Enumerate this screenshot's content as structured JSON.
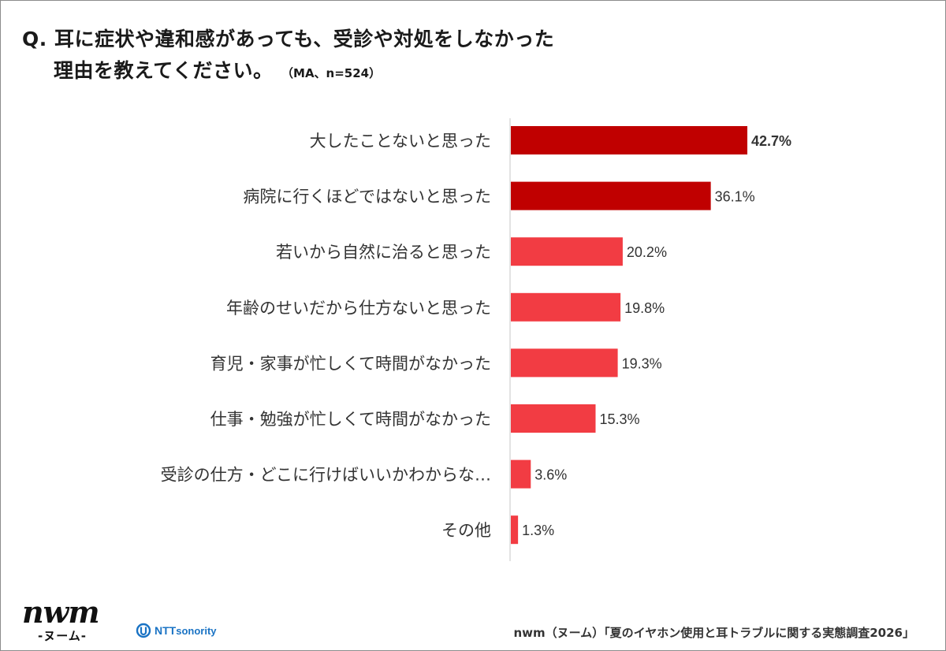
{
  "header": {
    "title_line1": "Q. 耳に症状や違和感があっても、受診や対処をしなかった",
    "title_line2": "理由を教えてください。",
    "note": "（MA、n=524）"
  },
  "chart_data": {
    "type": "bar",
    "orientation": "horizontal",
    "categories": [
      "大したことないと思った",
      "病院に行くほどではないと思った",
      "若いから自然に治ると思った",
      "年齢のせいだから仕方ないと思った",
      "育児・家事が忙しくて時間がなかった",
      "仕事・勉強が忙しくて時間がなかった",
      "受診の仕方・どこに行けばいいかわからな…",
      "その他"
    ],
    "values": [
      42.7,
      36.1,
      20.2,
      19.8,
      19.3,
      15.3,
      3.6,
      1.3
    ],
    "value_labels": [
      "42.7%",
      "36.1%",
      "20.2%",
      "19.8%",
      "19.3%",
      "15.3%",
      "3.6%",
      "1.3%"
    ],
    "highlight_count": 2,
    "colors": {
      "highlight": "#c00000",
      "normal": "#f23c43",
      "axis": "#d0d0d0"
    },
    "xlim": [
      0,
      100
    ],
    "grid": false,
    "legend": "none"
  },
  "footer": {
    "logo_word": "nwm",
    "logo_sub": "-ヌーム-",
    "partner_icon": "ntt-sonority-icon",
    "partner_name_a": "NTT",
    "partner_name_b": "sonority",
    "source": "nwm（ヌーム）「夏のイヤホン使用と耳トラブルに関する実態調査2026」"
  }
}
